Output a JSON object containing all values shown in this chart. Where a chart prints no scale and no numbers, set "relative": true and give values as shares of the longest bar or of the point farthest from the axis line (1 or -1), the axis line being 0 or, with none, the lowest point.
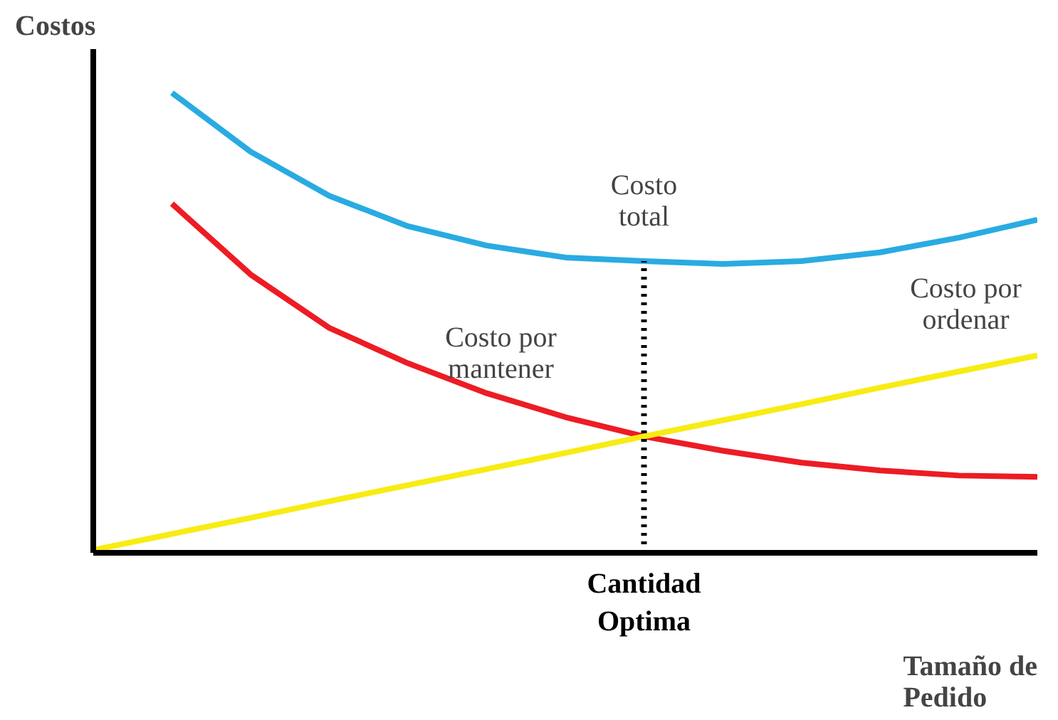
{
  "chart_data": {
    "type": "line",
    "relative": true,
    "ylabel": "Costos",
    "xlabel": "Tamaño de Pedido",
    "tick_labels": "x",
    "categories": [
      null,
      null,
      null,
      null,
      null,
      null,
      null,
      null,
      null,
      null,
      null,
      null,
      null
    ],
    "series": [
      {
        "name": "Costo total",
        "color": "#29abe2",
        "values": [
          null,
          1,
          0.872,
          0.776,
          0.71,
          0.668,
          0.642,
          0.634,
          0.628,
          0.634,
          0.653,
          0.685,
          0.724
        ]
      },
      {
        "name": "Costo por mantener",
        "color": "#ed1c24",
        "values": [
          null,
          0.759,
          0.605,
          0.489,
          0.412,
          0.347,
          0.295,
          0.253,
          0.222,
          0.196,
          0.179,
          0.168,
          0.165
        ]
      },
      {
        "name": "Costo por ordenar",
        "color": "#f7ec13",
        "values": [
          0.006,
          0.041,
          0.076,
          0.112,
          0.147,
          0.182,
          0.217,
          0.253,
          0.288,
          0.323,
          0.359,
          0.394,
          0.429
        ]
      }
    ],
    "ref_lines": [
      {
        "axis": "x",
        "label": "Cantidad Optima",
        "color": "#000000",
        "line_style": "dotted"
      }
    ]
  }
}
